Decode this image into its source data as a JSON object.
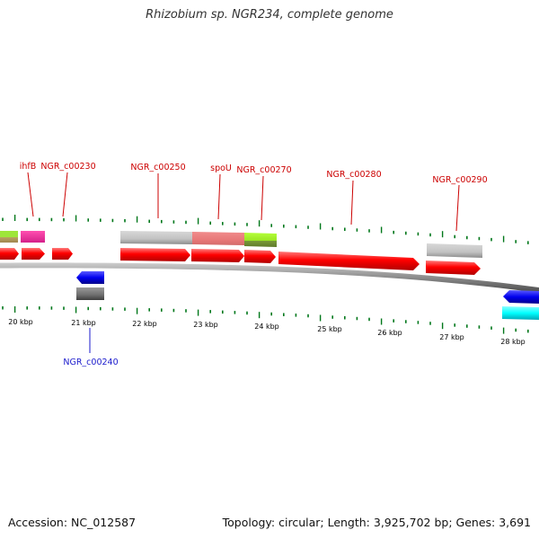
{
  "title": "Rhizobium sp. NGR234, complete genome",
  "footer": {
    "accession": "Accession: NC_012587",
    "summary": "Topology: circular; Length: 3,925,702 bp; Genes: 3,691"
  },
  "scale": {
    "unit": "kbp",
    "labels": [
      "20 kbp",
      "21 kbp",
      "22 kbp",
      "23 kbp",
      "24 kbp",
      "25 kbp",
      "26 kbp",
      "27 kbp",
      "28 kbp"
    ]
  },
  "gene_labels": {
    "forward": [
      "ihfB",
      "NGR_c00230",
      "NGR_c00250",
      "spoU",
      "NGR_c00270",
      "NGR_c00280",
      "NGR_c00290"
    ],
    "reverse": [
      "NGR_c00240"
    ]
  },
  "colors": {
    "forward_label": "#cc0000",
    "reverse_label": "#1a1acc",
    "cds_forward": "#ff0000",
    "cds_reverse": "#1010ff",
    "tick": "#00771a",
    "backbone": "#8a8a8a"
  }
}
